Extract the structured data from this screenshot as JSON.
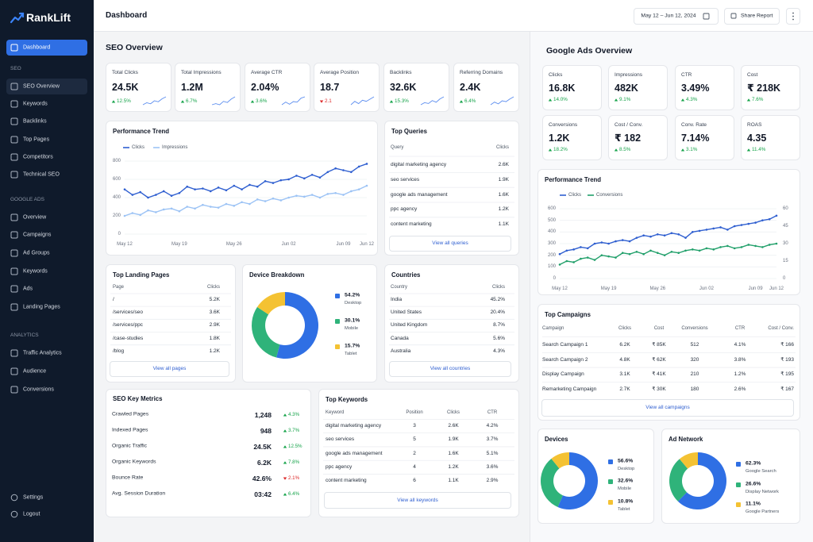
{
  "sidebar": {
    "brand": "RankLift",
    "home": "Dashboard",
    "sections": [
      {
        "title": "SEO",
        "items": [
          "SEO Overview",
          "Keywords",
          "Backlinks",
          "Top Pages",
          "Competitors",
          "Technical SEO"
        ]
      },
      {
        "title": "GOOGLE ADS",
        "items": [
          "Overview",
          "Campaigns",
          "Ad Groups",
          "Keywords",
          "Ads",
          "Landing Pages"
        ]
      },
      {
        "title": "ANALYTICS",
        "items": [
          "Traffic Analytics",
          "Audience",
          "Conversions"
        ]
      }
    ],
    "footer": [
      "Settings",
      "Logout"
    ]
  },
  "header": {
    "title": "Dashboard",
    "date_range": "May 12 – Jun 12, 2024",
    "share": "Share Report"
  },
  "seo": {
    "title": "SEO Overview",
    "kpis": [
      {
        "label": "Total Clicks",
        "value": "24.5K",
        "change": "12.5%",
        "trend": "up",
        "spark": [
          3,
          4,
          3.5,
          5,
          4.5,
          6,
          7
        ]
      },
      {
        "label": "Total Impressions",
        "value": "1.2M",
        "change": "6.7%",
        "trend": "up",
        "spark": [
          3,
          3.5,
          3,
          4.5,
          4,
          5.5,
          6.5
        ]
      },
      {
        "label": "Average CTR",
        "value": "2.04%",
        "change": "3.6%",
        "trend": "up",
        "spark": [
          3,
          4,
          3.2,
          4.2,
          4,
          5.5,
          6
        ]
      },
      {
        "label": "Average Position",
        "value": "18.7",
        "change": "2.1",
        "trend": "down",
        "spark": [
          3,
          4.5,
          3.5,
          5,
          4.5,
          5.5,
          6.5
        ]
      },
      {
        "label": "Backlinks",
        "value": "32.6K",
        "change": "15.3%",
        "trend": "up",
        "spark": [
          3,
          4,
          3.6,
          5,
          4.2,
          5.8,
          6.8
        ]
      },
      {
        "label": "Referring Domains",
        "value": "2.4K",
        "change": "6.4%",
        "trend": "up",
        "spark": [
          3,
          4.2,
          3.4,
          4.8,
          4.4,
          5.6,
          6.6
        ]
      }
    ],
    "trend": {
      "type": "line",
      "title": "Performance Trend",
      "categories": [
        "May 12",
        null,
        null,
        null,
        null,
        null,
        null,
        "May 19",
        null,
        null,
        null,
        null,
        null,
        null,
        "May 26",
        null,
        null,
        null,
        null,
        null,
        null,
        "Jun 02",
        null,
        null,
        null,
        null,
        null,
        null,
        "Jun 09",
        null,
        null,
        "Jun 12"
      ],
      "series": [
        {
          "name": "Clicks",
          "color": "#2f5fd0",
          "values": [
            490,
            430,
            460,
            400,
            430,
            470,
            420,
            450,
            520,
            490,
            500,
            470,
            510,
            480,
            530,
            490,
            540,
            520,
            580,
            560,
            590,
            600,
            640,
            610,
            650,
            620,
            680,
            720,
            700,
            680,
            740,
            770
          ]
        },
        {
          "name": "Impressions",
          "color": "#9cc3f5",
          "values": [
            200,
            230,
            210,
            260,
            240,
            270,
            280,
            250,
            300,
            280,
            320,
            300,
            290,
            330,
            310,
            350,
            330,
            380,
            360,
            390,
            370,
            400,
            420,
            410,
            430,
            400,
            440,
            450,
            430,
            470,
            490,
            530
          ]
        }
      ],
      "ylim": [
        0,
        800
      ],
      "yticks": [
        0,
        200,
        400,
        600,
        800
      ],
      "grid": true
    },
    "top_queries": {
      "title": "Top Queries",
      "columns": [
        "Query",
        "Clicks"
      ],
      "rows": [
        [
          "digital marketing agency",
          "2.6K"
        ],
        [
          "seo services",
          "1.9K"
        ],
        [
          "google ads management",
          "1.6K"
        ],
        [
          "ppc agency",
          "1.2K"
        ],
        [
          "content marketing",
          "1.1K"
        ]
      ],
      "button": "View all queries"
    },
    "landing_pages": {
      "title": "Top Landing Pages",
      "columns": [
        "Page",
        "Clicks"
      ],
      "rows": [
        [
          "/",
          "5.2K"
        ],
        [
          "/services/seo",
          "3.6K"
        ],
        [
          "/services/ppc",
          "2.9K"
        ],
        [
          "/case-studies",
          "1.8K"
        ],
        [
          "/blog",
          "1.2K"
        ]
      ],
      "button": "View all pages"
    },
    "device": {
      "type": "donut",
      "title": "Device Breakdown",
      "categories": [
        "Desktop",
        "Mobile",
        "Tablet"
      ],
      "values": [
        54.2,
        30.1,
        15.7
      ],
      "value_labels": [
        "54.2%",
        "30.1%",
        "15.7%"
      ],
      "colors": [
        "#2f6fe4",
        "#2fb37a",
        "#f4c233"
      ]
    },
    "countries": {
      "title": "Countries",
      "columns": [
        "Country",
        "Clicks"
      ],
      "rows": [
        [
          "India",
          "45.2%"
        ],
        [
          "United States",
          "20.4%"
        ],
        [
          "United Kingdom",
          "8.7%"
        ],
        [
          "Canada",
          "5.6%"
        ],
        [
          "Australia",
          "4.3%"
        ]
      ],
      "button": "View all countries"
    },
    "key_metrics": {
      "title": "SEO Key Metrics",
      "rows": [
        {
          "label": "Crawled Pages",
          "value": "1,248",
          "change": "4.3%",
          "trend": "up"
        },
        {
          "label": "Indexed Pages",
          "value": "948",
          "change": "3.7%",
          "trend": "up"
        },
        {
          "label": "Organic Traffic",
          "value": "24.5K",
          "change": "12.5%",
          "trend": "up"
        },
        {
          "label": "Organic Keywords",
          "value": "6.2K",
          "change": "7.8%",
          "trend": "up"
        },
        {
          "label": "Bounce Rate",
          "value": "42.6%",
          "change": "2.1%",
          "trend": "down"
        },
        {
          "label": "Avg. Session Duration",
          "value": "03:42",
          "change": "6.4%",
          "trend": "up"
        }
      ]
    },
    "top_keywords": {
      "title": "Top Keywords",
      "columns": [
        "Keyword",
        "Position",
        "Clicks",
        "CTR"
      ],
      "rows": [
        [
          "digital marketing agency",
          "3",
          "2.6K",
          "4.2%"
        ],
        [
          "seo services",
          "5",
          "1.9K",
          "3.7%"
        ],
        [
          "google ads management",
          "2",
          "1.6K",
          "5.1%"
        ],
        [
          "ppc agency",
          "4",
          "1.2K",
          "3.6%"
        ],
        [
          "content marketing",
          "6",
          "1.1K",
          "2.9%"
        ]
      ],
      "button": "View all keywords"
    }
  },
  "ads": {
    "title": "Google Ads Overview",
    "kpis": [
      {
        "label": "Clicks",
        "value": "16.8K",
        "change": "14.0%",
        "trend": "up"
      },
      {
        "label": "Impressions",
        "value": "482K",
        "change": "9.1%",
        "trend": "up"
      },
      {
        "label": "CTR",
        "value": "3.49%",
        "change": "4.3%",
        "trend": "up"
      },
      {
        "label": "Cost",
        "value": "₹ 218K",
        "change": "7.6%",
        "trend": "up"
      },
      {
        "label": "Conversions",
        "value": "1.2K",
        "change": "18.2%",
        "trend": "up"
      },
      {
        "label": "Cost / Conv.",
        "value": "₹ 182",
        "change": "8.5%",
        "trend": "up"
      },
      {
        "label": "Conv. Rate",
        "value": "7.14%",
        "change": "3.1%",
        "trend": "up"
      },
      {
        "label": "ROAS",
        "value": "4.35",
        "change": "11.4%",
        "trend": "up"
      }
    ],
    "trend": {
      "type": "line",
      "title": "Performance Trend",
      "categories": [
        "May 12",
        null,
        null,
        null,
        null,
        null,
        null,
        "May 19",
        null,
        null,
        null,
        null,
        null,
        null,
        "May 26",
        null,
        null,
        null,
        null,
        null,
        null,
        "Jun 02",
        null,
        null,
        null,
        null,
        null,
        null,
        "Jun 09",
        null,
        null,
        "Jun 12"
      ],
      "series": [
        {
          "name": "Clicks",
          "color": "#2f5fd0",
          "values": [
            210,
            240,
            250,
            270,
            260,
            300,
            310,
            300,
            320,
            330,
            320,
            350,
            370,
            360,
            380,
            370,
            390,
            380,
            350,
            400,
            410,
            420,
            430,
            440,
            420,
            450,
            460,
            470,
            480,
            500,
            510,
            540
          ]
        },
        {
          "name": "Conversions",
          "color": "#22a06b",
          "axis": "y2",
          "values": [
            12,
            15,
            14,
            17,
            18,
            16,
            20,
            19,
            18,
            22,
            21,
            23,
            21,
            24,
            22,
            20,
            23,
            22,
            24,
            25,
            24,
            26,
            25,
            27,
            28,
            26,
            27,
            29,
            28,
            27,
            29,
            30
          ]
        }
      ],
      "ylim": [
        0,
        600
      ],
      "yticks": [
        0,
        100,
        200,
        300,
        400,
        500,
        600
      ],
      "y2lim": [
        0,
        60
      ],
      "y2ticks": [
        0,
        15,
        30,
        45,
        60
      ],
      "grid": true
    },
    "campaigns": {
      "title": "Top Campaigns",
      "columns": [
        "Campaign",
        "Clicks",
        "Cost",
        "Conversions",
        "CTR",
        "Cost / Conv."
      ],
      "rows": [
        [
          "Search Campaign 1",
          "6.2K",
          "₹ 85K",
          "512",
          "4.1%",
          "₹ 166"
        ],
        [
          "Search Campaign 2",
          "4.8K",
          "₹ 62K",
          "320",
          "3.8%",
          "₹ 193"
        ],
        [
          "Display Campaign",
          "3.1K",
          "₹ 41K",
          "210",
          "1.2%",
          "₹ 195"
        ],
        [
          "Remarketing Campaign",
          "2.7K",
          "₹ 30K",
          "180",
          "2.6%",
          "₹ 167"
        ]
      ],
      "button": "View all campaigns"
    },
    "devices": {
      "type": "donut",
      "title": "Devices",
      "categories": [
        "Desktop",
        "Mobile",
        "Tablet"
      ],
      "values": [
        56.6,
        32.6,
        10.8
      ],
      "value_labels": [
        "56.6%",
        "32.6%",
        "10.8%"
      ],
      "colors": [
        "#2f6fe4",
        "#2fb37a",
        "#f4c233"
      ]
    },
    "network": {
      "type": "donut",
      "title": "Ad Network",
      "categories": [
        "Google Search",
        "Display Network",
        "Google Partners"
      ],
      "values": [
        62.3,
        26.6,
        11.1
      ],
      "value_labels": [
        "62.3%",
        "26.6%",
        "11.1%"
      ],
      "colors": [
        "#2f6fe4",
        "#2fb37a",
        "#f4c233"
      ]
    }
  }
}
